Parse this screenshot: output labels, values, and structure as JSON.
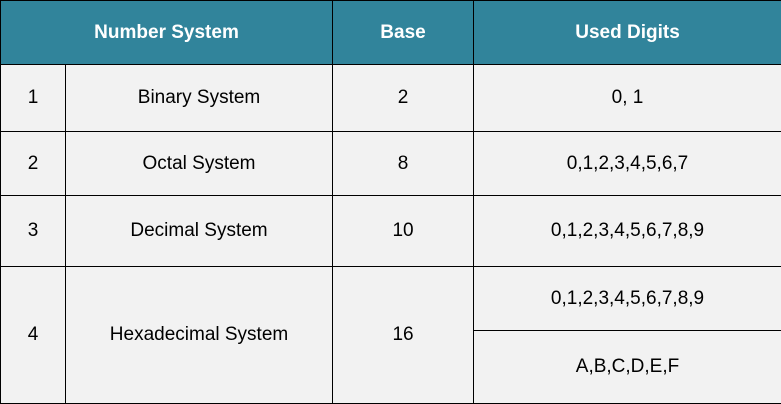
{
  "header": {
    "number_system": "Number System",
    "base": "Base",
    "used_digits": "Used Digits"
  },
  "rows": [
    {
      "num": "1",
      "name": "Binary System",
      "base": "2",
      "digits": [
        "0, 1"
      ]
    },
    {
      "num": "2",
      "name": "Octal System",
      "base": "8",
      "digits": [
        "0,1,2,3,4,5,6,7"
      ]
    },
    {
      "num": "3",
      "name": "Decimal System",
      "base": "10",
      "digits": [
        "0,1,2,3,4,5,6,7,8,9"
      ]
    },
    {
      "num": "4",
      "name": "Hexadecimal System",
      "base": "16",
      "digits": [
        "0,1,2,3,4,5,6,7,8,9",
        "A,B,C,D,E,F"
      ]
    }
  ],
  "colors": {
    "header_bg": "#31849b",
    "header_text": "#ffffff",
    "cell_bg": "#f2f2f2",
    "border": "#000000"
  }
}
